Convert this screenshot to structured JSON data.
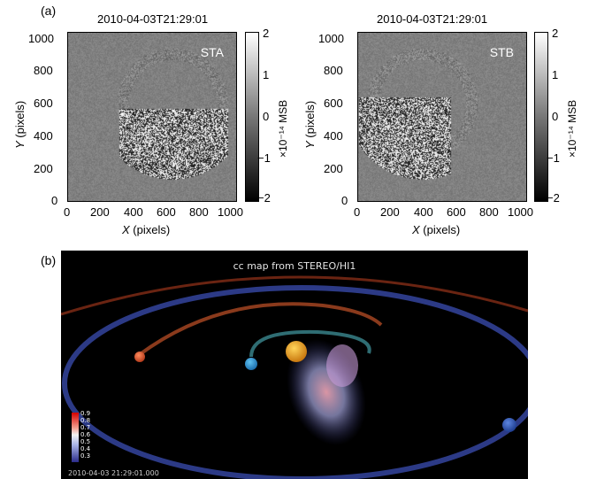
{
  "panel_a": {
    "label": "(a)",
    "left": {
      "timestamp": "2010-04-03T21:29:01",
      "tag": "STA",
      "ylabel_italic": "Y",
      "ylabel_rest": " (pixels)",
      "xlabel_italic": "X",
      "xlabel_rest": " (pixels)",
      "y_ticks": [
        "1000",
        "800",
        "600",
        "400",
        "200",
        "0"
      ],
      "x_ticks": [
        "0",
        "200",
        "400",
        "600",
        "800",
        "1000"
      ],
      "cbar_ticks": [
        "2",
        "1",
        "0",
        "−1",
        "−2"
      ],
      "cbar_label": "×10⁻¹⁴ MSB"
    },
    "right": {
      "timestamp": "2010-04-03T21:29:01",
      "tag": "STB",
      "ylabel_italic": "Y",
      "ylabel_rest": " (pixels)",
      "xlabel_italic": "X",
      "xlabel_rest": " (pixels)",
      "y_ticks": [
        "1000",
        "800",
        "600",
        "400",
        "200",
        "0"
      ],
      "x_ticks": [
        "0",
        "200",
        "400",
        "600",
        "800",
        "1000"
      ],
      "cbar_ticks": [
        "2",
        "1",
        "0",
        "−1",
        "−2"
      ],
      "cbar_label": "×10⁻¹⁴ MSB"
    }
  },
  "panel_b": {
    "label": "(b)",
    "title": "cc map from STEREO/HI1",
    "legend_values": [
      "0.9",
      "0.8",
      "0.7",
      "0.6",
      "0.5",
      "0.4",
      "0.3"
    ],
    "timestamp": "2010-04-03 21:29:01.000",
    "colors": {
      "background": "#000000",
      "outer_orbit": "#2c3a86",
      "red_orbit": "#7a2a14",
      "inner_orbit": "#2f6d73",
      "sun": "#f0a21f",
      "earth": "#2f97d6",
      "venus_like": "#e0633a",
      "sta_planet": "#2f5fc2"
    }
  }
}
